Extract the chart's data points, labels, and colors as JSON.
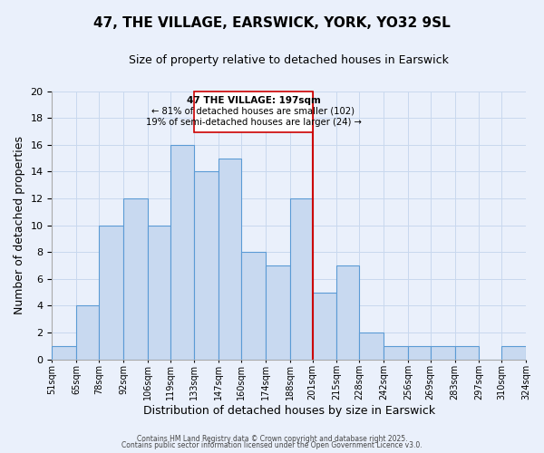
{
  "title": "47, THE VILLAGE, EARSWICK, YORK, YO32 9SL",
  "subtitle": "Size of property relative to detached houses in Earswick",
  "xlabel": "Distribution of detached houses by size in Earswick",
  "ylabel": "Number of detached properties",
  "bar_edges": [
    51,
    65,
    78,
    92,
    106,
    119,
    133,
    147,
    160,
    174,
    188,
    201,
    215,
    228,
    242,
    256,
    269,
    283,
    297,
    310,
    324
  ],
  "bar_heights": [
    1,
    4,
    10,
    12,
    10,
    16,
    14,
    15,
    8,
    7,
    12,
    5,
    7,
    2,
    1,
    1,
    1,
    1,
    0,
    1
  ],
  "bar_color": "#c8d9f0",
  "bar_edgecolor": "#5b9bd5",
  "vline_x": 201,
  "vline_color": "#cc0000",
  "ylim": [
    0,
    20
  ],
  "yticks": [
    0,
    2,
    4,
    6,
    8,
    10,
    12,
    14,
    16,
    18,
    20
  ],
  "annotation_title": "47 THE VILLAGE: 197sqm",
  "annotation_line1": "← 81% of detached houses are smaller (102)",
  "annotation_line2": "19% of semi-detached houses are larger (24) →",
  "annotation_box_color": "#ffffff",
  "annotation_box_edgecolor": "#cc0000",
  "grid_color": "#c8d8ee",
  "bg_color": "#eaf0fb",
  "footer1": "Contains HM Land Registry data © Crown copyright and database right 2025.",
  "footer2": "Contains public sector information licensed under the Open Government Licence v3.0."
}
